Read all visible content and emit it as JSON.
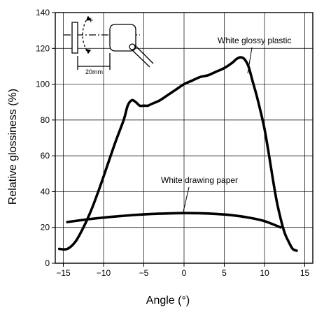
{
  "chart_data": {
    "type": "line",
    "title": "",
    "xlabel": "Angle (°)",
    "ylabel": "Relative glossiness (%)",
    "xlim": [
      -16,
      16
    ],
    "ylim": [
      0,
      140
    ],
    "x_ticks": [
      -15,
      -10,
      -5,
      0,
      5,
      10,
      15
    ],
    "x_tick_labels": [
      "−15",
      "−10",
      "−5",
      "0",
      "5",
      "10",
      "15"
    ],
    "y_ticks": [
      0,
      20,
      40,
      60,
      80,
      100,
      120,
      140
    ],
    "y_tick_labels": [
      "0",
      "20",
      "40",
      "60",
      "80",
      "100",
      "120",
      "140"
    ],
    "grid": true,
    "series": [
      {
        "name": "White glossy plastic",
        "x": [
          -15.5,
          -14.5,
          -13.5,
          -12.5,
          -11.5,
          -10.5,
          -9.5,
          -8.5,
          -7.5,
          -7.0,
          -6.5,
          -6.0,
          -5.5,
          -5.0,
          -4.5,
          -4.0,
          -3.0,
          -2.0,
          -1.0,
          0.0,
          1.0,
          2.0,
          3.0,
          4.0,
          5.0,
          6.0,
          6.5,
          7.0,
          7.5,
          8.0,
          8.5,
          9.0,
          9.5,
          10.0,
          10.5,
          11.0,
          11.5,
          12.0,
          12.5,
          13.0,
          13.5,
          14.0
        ],
        "y": [
          8,
          8,
          12,
          20,
          30,
          42,
          55,
          68,
          80,
          88,
          91,
          90,
          88,
          88,
          88,
          89,
          91,
          94,
          97,
          100,
          102,
          104,
          105,
          107,
          109,
          112,
          114,
          115,
          114,
          110,
          102,
          94,
          85,
          75,
          62,
          48,
          35,
          25,
          17,
          12,
          8,
          7
        ]
      },
      {
        "name": "White drawing paper",
        "x": [
          -14.5,
          -12,
          -10,
          -8,
          -6,
          -4,
          -2,
          0,
          2,
          4,
          6,
          8,
          10,
          12
        ],
        "y": [
          23,
          24.5,
          25.5,
          26.3,
          27,
          27.5,
          27.8,
          28,
          27.9,
          27.5,
          26.8,
          25.5,
          23.5,
          20
        ]
      }
    ],
    "annotations": [
      {
        "text": "White glossy plastic",
        "target_series": 0
      },
      {
        "text": "White drawing paper",
        "target_series": 1
      }
    ],
    "inset": {
      "dimension_label": "20mm",
      "plus_sign": "+",
      "minus_sign": "−"
    }
  }
}
